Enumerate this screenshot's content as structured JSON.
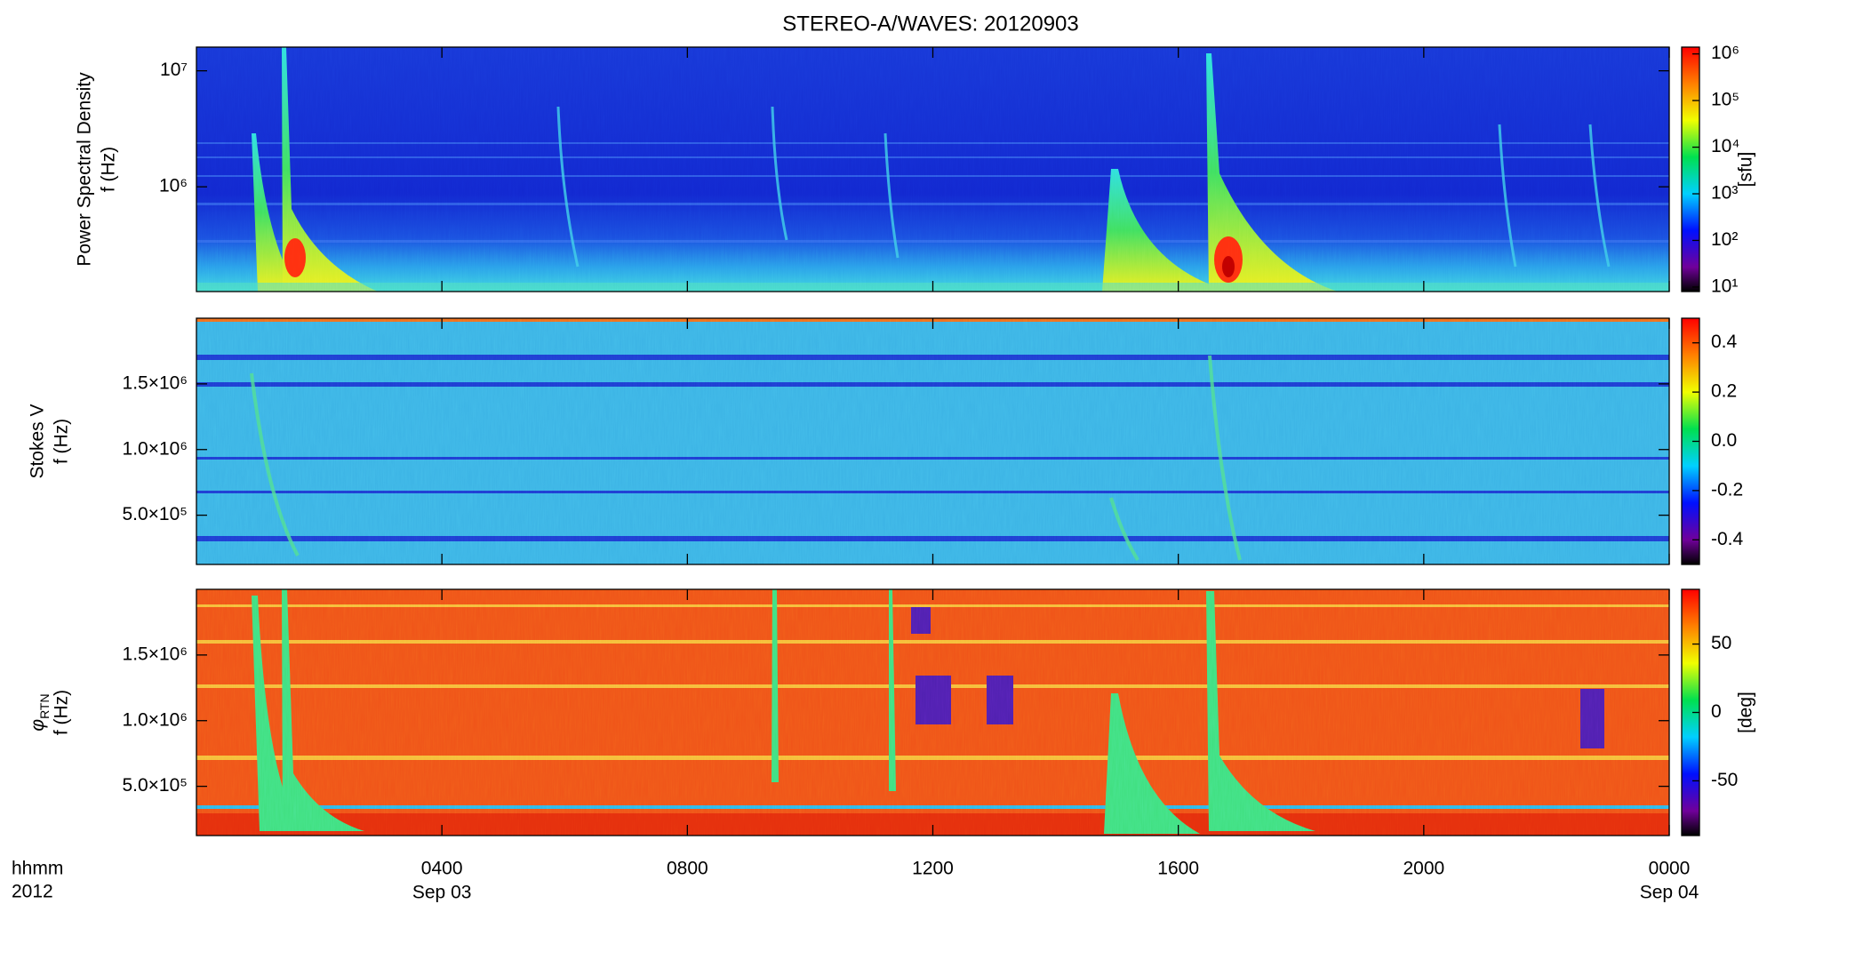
{
  "title": "STEREO-A/WAVES: 20120903",
  "xaxis": {
    "xlim": [
      0,
      24
    ],
    "xticks": [
      {
        "value": 4,
        "label": "0400"
      },
      {
        "value": 8,
        "label": "0800"
      },
      {
        "value": 12,
        "label": "1200"
      },
      {
        "value": 16,
        "label": "1600"
      },
      {
        "value": 20,
        "label": "2000"
      },
      {
        "value": 24,
        "label": "0000"
      }
    ],
    "dates": [
      {
        "value": 4,
        "label": "Sep 03"
      },
      {
        "value": 24,
        "label": "Sep 04"
      }
    ],
    "unit_label": "hhmm",
    "year_label": "2012"
  },
  "chart_data": [
    {
      "type": "spectrogram",
      "ylabel": "Power Spectral Density",
      "ylabel2": "f (Hz)",
      "ylog": true,
      "ylim": [
        125000,
        16000000
      ],
      "yticks": [
        {
          "value": 1000000,
          "label": "10⁶"
        },
        {
          "value": 10000000,
          "label": "10⁷"
        }
      ],
      "colorbar": {
        "log": true,
        "clim": [
          8,
          1400000
        ],
        "ticks": [
          {
            "value": 10,
            "label": "10¹"
          },
          {
            "value": 100,
            "label": "10²"
          },
          {
            "value": 1000,
            "label": "10³"
          },
          {
            "value": 10000,
            "label": "10⁴"
          },
          {
            "value": 100000,
            "label": "10⁵"
          },
          {
            "value": 1000000,
            "label": "10⁶"
          }
        ],
        "label": "[sfu]"
      }
    },
    {
      "type": "spectrogram",
      "ylabel": "Stokes V",
      "ylabel2": "f (Hz)",
      "ylog": false,
      "ylim": [
        125000,
        2000000
      ],
      "yticks": [
        {
          "value": 500000,
          "label": "5.0×10⁵"
        },
        {
          "value": 1000000,
          "label": "1.0×10⁶"
        },
        {
          "value": 1500000,
          "label": "1.5×10⁶"
        }
      ],
      "colorbar": {
        "log": false,
        "clim": [
          -0.5,
          0.5
        ],
        "ticks": [
          -0.4,
          -0.2,
          {
            "value": 0,
            "label": "0.0"
          },
          0.2,
          0.4
        ]
      }
    },
    {
      "type": "spectrogram",
      "ylabel": "φ",
      "ylabel_sub": "RTN",
      "ylabel2": "f (Hz)",
      "ylog": false,
      "ylim": [
        125000,
        2000000
      ],
      "yticks": [
        {
          "value": 500000,
          "label": "5.0×10⁵"
        },
        {
          "value": 1000000,
          "label": "1.0×10⁶"
        },
        {
          "value": 1500000,
          "label": "1.5×10⁶"
        }
      ],
      "colorbar": {
        "log": false,
        "clim": [
          -90,
          90
        ],
        "ticks": [
          -50,
          0,
          50
        ],
        "label": "[deg]"
      }
    }
  ]
}
